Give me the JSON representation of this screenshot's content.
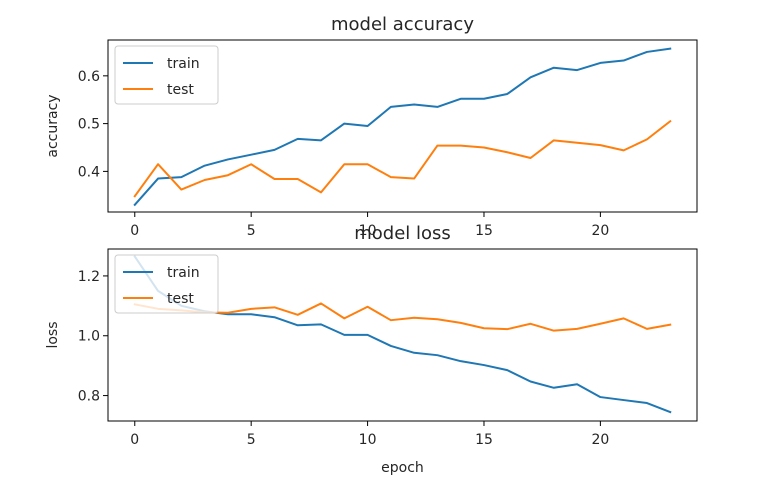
{
  "chart_data": [
    {
      "type": "line",
      "title": "model accuracy",
      "xlabel": "",
      "ylabel": "accuracy",
      "xlim": [
        -1.15,
        24.15
      ],
      "ylim": [
        0.315,
        0.675
      ],
      "xticks": [
        0,
        5,
        10,
        15,
        20
      ],
      "yticks": [
        0.4,
        0.5,
        0.6
      ],
      "ytick_labels": [
        "0.4",
        "0.5",
        "0.6"
      ],
      "legend": "upper-left",
      "grid": false,
      "series": [
        {
          "name": "train",
          "color": "#1f77b4",
          "x": [
            0,
            1,
            2,
            3,
            4,
            5,
            6,
            7,
            8,
            9,
            10,
            11,
            12,
            13,
            14,
            15,
            16,
            17,
            18,
            19,
            20,
            21,
            22,
            23
          ],
          "values": [
            0.33,
            0.385,
            0.388,
            0.412,
            0.425,
            0.435,
            0.445,
            0.468,
            0.465,
            0.5,
            0.495,
            0.535,
            0.54,
            0.535,
            0.552,
            0.552,
            0.562,
            0.597,
            0.617,
            0.612,
            0.627,
            0.632,
            0.65,
            0.657
          ]
        },
        {
          "name": "test",
          "color": "#ff7f0e",
          "x": [
            0,
            1,
            2,
            3,
            4,
            5,
            6,
            7,
            8,
            9,
            10,
            11,
            12,
            13,
            14,
            15,
            16,
            17,
            18,
            19,
            20,
            21,
            22,
            23
          ],
          "values": [
            0.348,
            0.415,
            0.362,
            0.382,
            0.392,
            0.415,
            0.384,
            0.384,
            0.356,
            0.415,
            0.415,
            0.388,
            0.385,
            0.454,
            0.454,
            0.45,
            0.44,
            0.428,
            0.465,
            0.46,
            0.455,
            0.444,
            0.467,
            0.505
          ]
        }
      ]
    },
    {
      "type": "line",
      "title": "model loss",
      "xlabel": "epoch",
      "ylabel": "loss",
      "xlim": [
        -1.15,
        24.15
      ],
      "ylim": [
        0.715,
        1.29
      ],
      "xticks": [
        0,
        5,
        10,
        15,
        20
      ],
      "yticks": [
        0.8,
        1.0,
        1.2
      ],
      "ytick_labels": [
        "0.8",
        "1.0",
        "1.2"
      ],
      "legend": "upper-left",
      "grid": false,
      "series": [
        {
          "name": "train",
          "color": "#1f77b4",
          "x": [
            0,
            1,
            2,
            3,
            4,
            5,
            6,
            7,
            8,
            9,
            10,
            11,
            12,
            13,
            14,
            15,
            16,
            17,
            18,
            19,
            20,
            21,
            22,
            23
          ],
          "values": [
            1.265,
            1.15,
            1.1,
            1.082,
            1.072,
            1.072,
            1.062,
            1.035,
            1.038,
            1.003,
            1.003,
            0.966,
            0.943,
            0.935,
            0.915,
            0.902,
            0.885,
            0.847,
            0.826,
            0.838,
            0.795,
            0.785,
            0.775,
            0.745
          ]
        },
        {
          "name": "test",
          "color": "#ff7f0e",
          "x": [
            0,
            1,
            2,
            3,
            4,
            5,
            6,
            7,
            8,
            9,
            10,
            11,
            12,
            13,
            14,
            15,
            16,
            17,
            18,
            19,
            20,
            21,
            22,
            23
          ],
          "values": [
            1.105,
            1.09,
            1.085,
            1.078,
            1.077,
            1.09,
            1.095,
            1.07,
            1.108,
            1.058,
            1.097,
            1.052,
            1.06,
            1.055,
            1.043,
            1.025,
            1.022,
            1.04,
            1.017,
            1.023,
            1.04,
            1.058,
            1.023,
            1.037
          ]
        }
      ]
    }
  ]
}
